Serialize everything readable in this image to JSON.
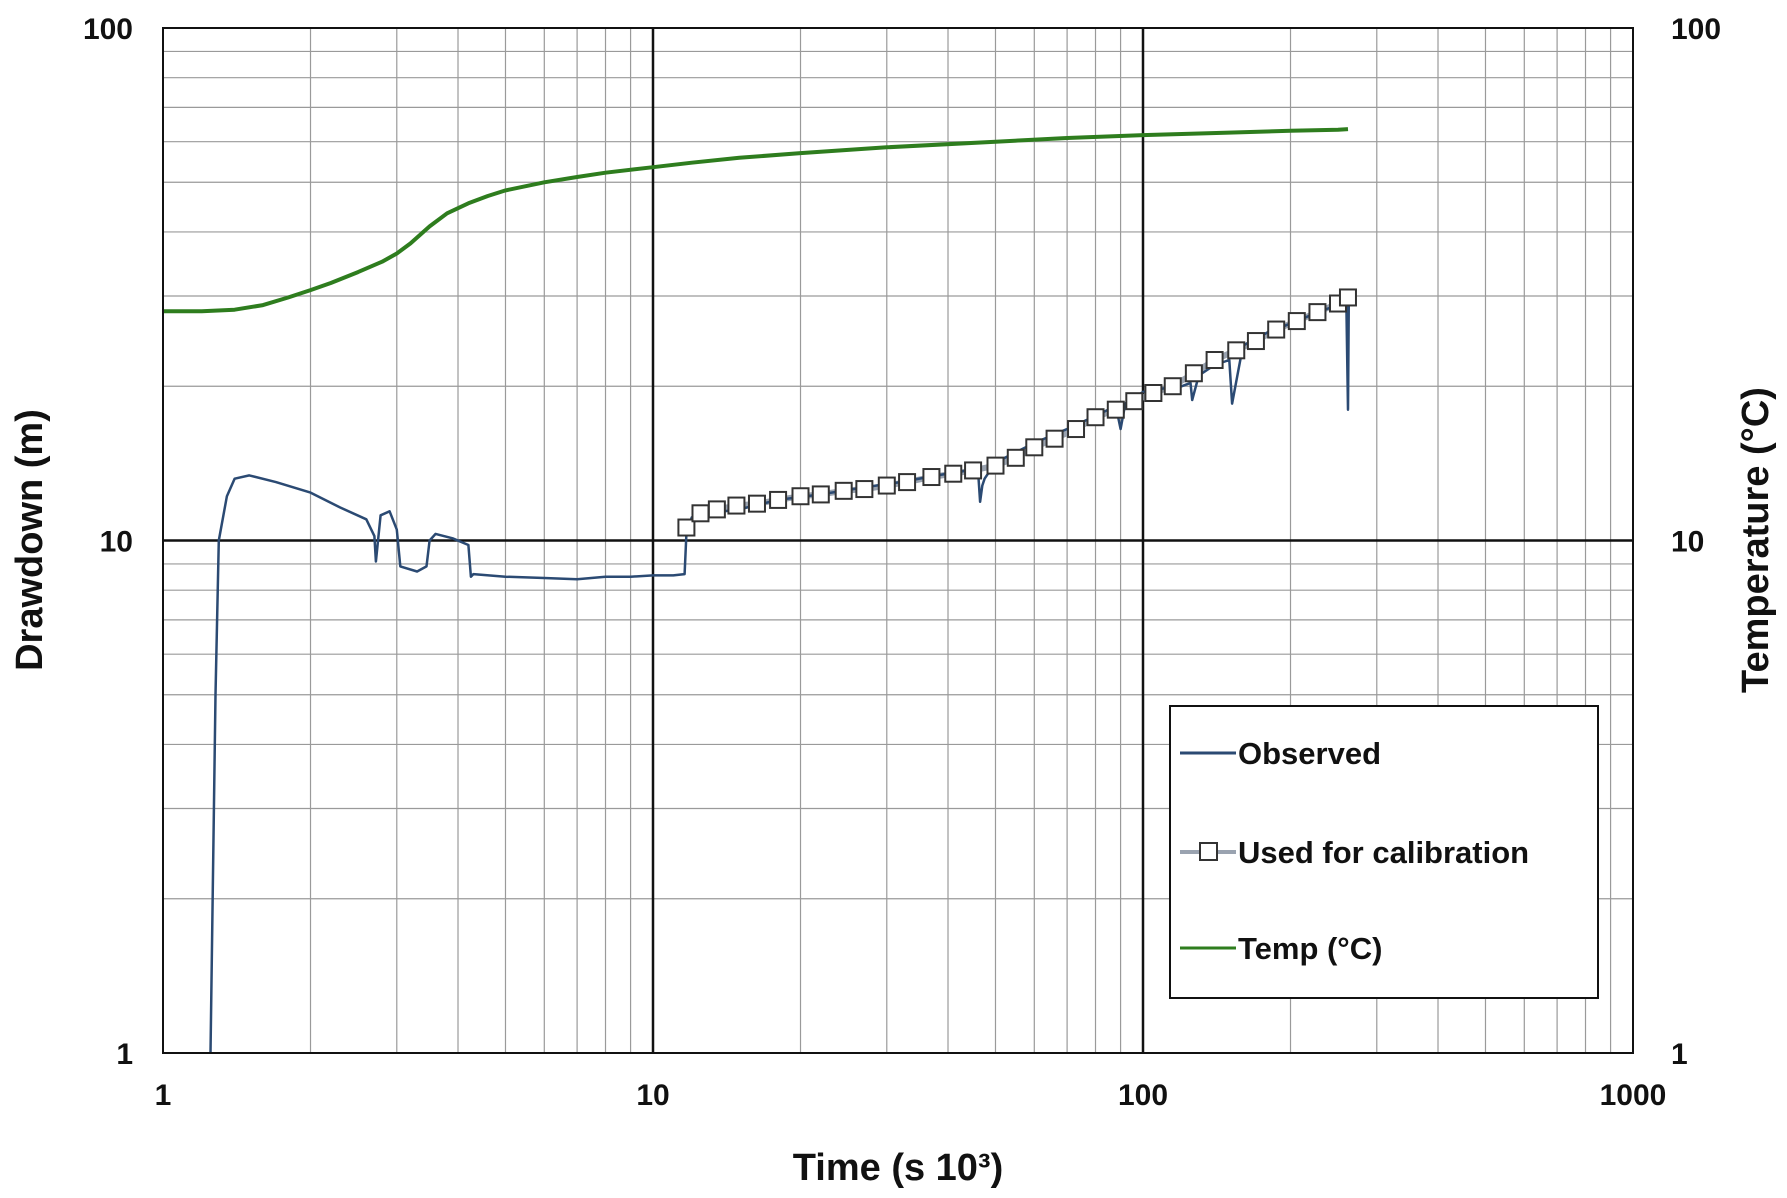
{
  "chart_data": {
    "type": "line",
    "xscale": "log",
    "yscale": "log",
    "y2scale": "log",
    "xlim": [
      1,
      1000
    ],
    "ylim": [
      1,
      100
    ],
    "y2lim": [
      1,
      100
    ],
    "xlabel": "Time (s 10³)",
    "ylabel": "Drawdown (m)",
    "y2label": "Temperature  (°C)",
    "x_ticks": [
      "1",
      "10",
      "100",
      "1000"
    ],
    "y_ticks": [
      "1",
      "10",
      "100"
    ],
    "y2_ticks": [
      "1",
      "10",
      "100"
    ],
    "grid": true,
    "legend_position": "lower-right",
    "colors": {
      "observed": "#2b4a73",
      "calibration": "#9aa3b0",
      "temp": "#2e7d1e"
    },
    "series": [
      {
        "name": "Observed",
        "axis": "left",
        "x": [
          1.25,
          1.28,
          1.3,
          1.35,
          1.4,
          1.5,
          1.7,
          2.0,
          2.3,
          2.6,
          2.7,
          2.72,
          2.78,
          2.9,
          3.0,
          3.05,
          3.3,
          3.45,
          3.5,
          3.6,
          3.9,
          4.2,
          4.25,
          4.3,
          5,
          6,
          7,
          8,
          9,
          10,
          11,
          11.6,
          11.7,
          12,
          13,
          15,
          18,
          22,
          27,
          32,
          38,
          44,
          46,
          46.5,
          47,
          47.5,
          50,
          60,
          70,
          80,
          88,
          90,
          92,
          100,
          110,
          120,
          125,
          126,
          130,
          140,
          150,
          152,
          160,
          180,
          200,
          230,
          255,
          260,
          262,
          263
        ],
        "y": [
          1.0,
          5.0,
          10.0,
          12.2,
          13.2,
          13.4,
          13.0,
          12.4,
          11.6,
          11.0,
          10.2,
          9.1,
          11.2,
          11.4,
          10.5,
          8.9,
          8.7,
          8.9,
          10.0,
          10.3,
          10.1,
          9.8,
          8.5,
          8.6,
          8.5,
          8.45,
          8.4,
          8.5,
          8.5,
          8.55,
          8.55,
          8.6,
          10.3,
          11.1,
          11.3,
          11.5,
          12.0,
          12.3,
          12.7,
          13.0,
          13.4,
          13.7,
          13.9,
          11.9,
          12.8,
          13.2,
          14.2,
          15.5,
          16.5,
          17.5,
          18.3,
          16.5,
          18.5,
          19.5,
          19.8,
          20.0,
          20.3,
          18.8,
          21.0,
          22.0,
          22.5,
          18.5,
          24.0,
          25.5,
          26.5,
          28.0,
          29.0,
          29.5,
          18.0,
          29.5
        ]
      },
      {
        "name": "Used for calibration",
        "axis": "left",
        "x": [
          11.7,
          12.5,
          13.5,
          14.8,
          16.3,
          18,
          20,
          22,
          24.5,
          27,
          30,
          33,
          37,
          41,
          45,
          50,
          55,
          60,
          66,
          73,
          80,
          88,
          96,
          105,
          115,
          127,
          140,
          155,
          170,
          187,
          206,
          227,
          250,
          262
        ],
        "y": [
          10.6,
          11.3,
          11.5,
          11.7,
          11.8,
          12.0,
          12.2,
          12.3,
          12.5,
          12.6,
          12.8,
          13.0,
          13.3,
          13.5,
          13.7,
          14.0,
          14.5,
          15.2,
          15.8,
          16.5,
          17.4,
          18.0,
          18.7,
          19.4,
          20.0,
          21.2,
          22.5,
          23.5,
          24.5,
          25.8,
          26.8,
          27.9,
          29.0,
          29.8
        ]
      },
      {
        "name": "Temp (°C)",
        "axis": "right",
        "x": [
          1.0,
          1.2,
          1.4,
          1.6,
          1.8,
          2.0,
          2.2,
          2.5,
          2.8,
          3.0,
          3.2,
          3.5,
          3.8,
          4.2,
          4.6,
          5.0,
          6,
          7,
          8,
          10,
          12,
          15,
          20,
          30,
          50,
          70,
          100,
          150,
          200,
          250,
          262
        ],
        "y": [
          28.0,
          28.0,
          28.2,
          28.8,
          29.8,
          30.8,
          31.8,
          33.4,
          35.0,
          36.3,
          38.0,
          41.0,
          43.5,
          45.5,
          47.0,
          48.2,
          50.0,
          51.2,
          52.2,
          53.5,
          54.6,
          55.8,
          57.0,
          58.5,
          60.0,
          61.0,
          61.8,
          62.5,
          63.0,
          63.3,
          63.5
        ]
      }
    ]
  }
}
